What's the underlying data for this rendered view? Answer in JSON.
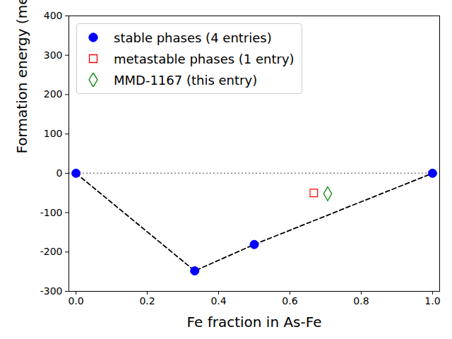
{
  "chart_data": {
    "type": "scatter",
    "xlabel": "Fe fraction in As-Fe",
    "ylabel": "Formation energy (meV/atom)",
    "xlim": [
      -0.02,
      1.02
    ],
    "ylim": [
      -300,
      400
    ],
    "xticks": [
      {
        "value": 0,
        "label": "0.0"
      },
      {
        "value": 0.2,
        "label": "0.2"
      },
      {
        "value": 0.4,
        "label": "0.4"
      },
      {
        "value": 0.6,
        "label": "0.6"
      },
      {
        "value": 0.8,
        "label": "0.8"
      },
      {
        "value": 1,
        "label": "1.0"
      }
    ],
    "yticks": [
      -300,
      -200,
      -100,
      0,
      100,
      200,
      300,
      400
    ],
    "hline": {
      "y": 0,
      "color": "#808080",
      "line_style": "dotted"
    },
    "legend": "upper left",
    "series": [
      {
        "name": "stable phases (4 entries)",
        "color": "#0000ff",
        "marker": "circle",
        "line_style": "dashed",
        "x": [
          0,
          0.333,
          0.5,
          1
        ],
        "values": [
          0,
          -248,
          -181,
          0
        ]
      },
      {
        "name": "metastable phases (1 entry)",
        "color": "#ff0000",
        "marker": "open_square",
        "x": [
          0.667
        ],
        "values": [
          -50
        ]
      },
      {
        "name": "MMD-1167 (this entry)",
        "color": "#008000",
        "marker": "open_diamond",
        "x": [
          0.706
        ],
        "values": [
          -52
        ]
      }
    ]
  }
}
